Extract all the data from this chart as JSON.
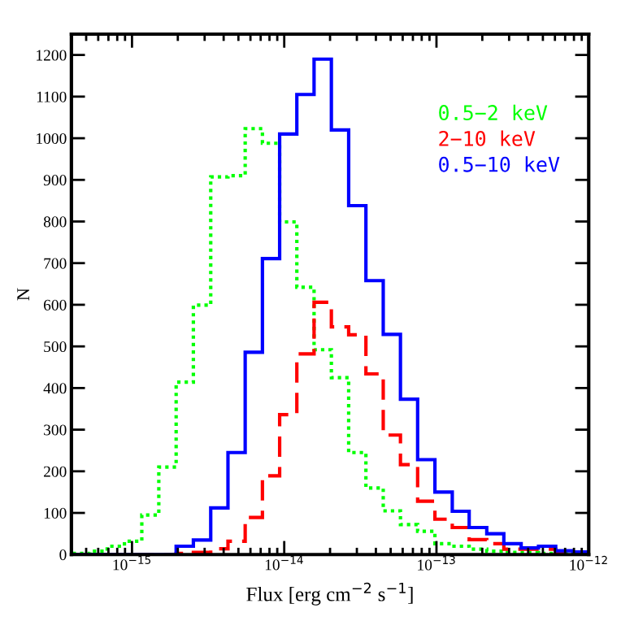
{
  "chart_data": {
    "type": "histogram",
    "xlabel": "Flux [erg cm$^{−2}$ s$^{−1}$]",
    "ylabel": "N",
    "bins": [
      4.07e-16,
      5.29e-16,
      6.87e-16,
      8.92e-16,
      1.16e-15,
      1.5e-15,
      1.95e-15,
      2.53e-15,
      3.29e-15,
      4.27e-15,
      5.54e-15,
      7.19e-15,
      9.33e-15,
      1.21e-14,
      1.57e-14,
      2.04e-14,
      2.65e-14,
      3.44e-14,
      4.47e-14,
      5.8e-14,
      7.52e-14,
      9.77e-14,
      1.27e-13,
      1.64e-13,
      2.14e-13,
      2.77e-13,
      3.6e-13,
      4.68e-13,
      6.07e-13,
      7.87e-13,
      1e-12
    ],
    "series": [
      {
        "name": "0.5−2 keV",
        "color": "#00ff00",
        "line_style": "dotted",
        "values": [
          3,
          8,
          20,
          32,
          95,
          210,
          414,
          599,
          907,
          910,
          1023,
          988,
          799,
          642,
          492,
          425,
          245,
          160,
          105,
          72,
          56,
          26,
          20,
          13,
          8,
          5,
          5,
          3,
          3,
          2
        ]
      },
      {
        "name": "2−10 keV",
        "color": "#ff0000",
        "line_style": "dashed",
        "values": [
          0,
          0,
          0,
          0,
          0,
          0,
          3,
          5,
          14,
          32,
          89,
          189,
          336,
          482,
          606,
          547,
          528,
          434,
          287,
          216,
          128,
          85,
          65,
          36,
          26,
          13,
          13,
          13,
          6,
          6
        ]
      },
      {
        "name": "0.5−10 keV",
        "color": "#0000ff",
        "line_style": "solid",
        "values": [
          0,
          0,
          0,
          0,
          0,
          0,
          20,
          35,
          112,
          245,
          486,
          711,
          1010,
          1105,
          1190,
          1020,
          838,
          658,
          529,
          373,
          228,
          150,
          104,
          65,
          50,
          26,
          16,
          20,
          9,
          6
        ]
      }
    ],
    "log": "x",
    "xlim": [
      4e-16,
      1e-12
    ],
    "xticks": [
      {
        "value": 1e-15,
        "label": "10$^{−15}$"
      },
      {
        "value": 1e-14,
        "label": "10$^{−14}$"
      },
      {
        "value": 1e-13,
        "label": "10$^{−13}$"
      },
      {
        "value": 1e-12,
        "label": "10$^{−12}$"
      }
    ],
    "ylim": [
      0,
      1250
    ],
    "yticks": [
      0,
      100,
      200,
      300,
      400,
      500,
      600,
      700,
      800,
      900,
      1000,
      1100,
      1200
    ],
    "grid": false,
    "legend": "top right"
  }
}
